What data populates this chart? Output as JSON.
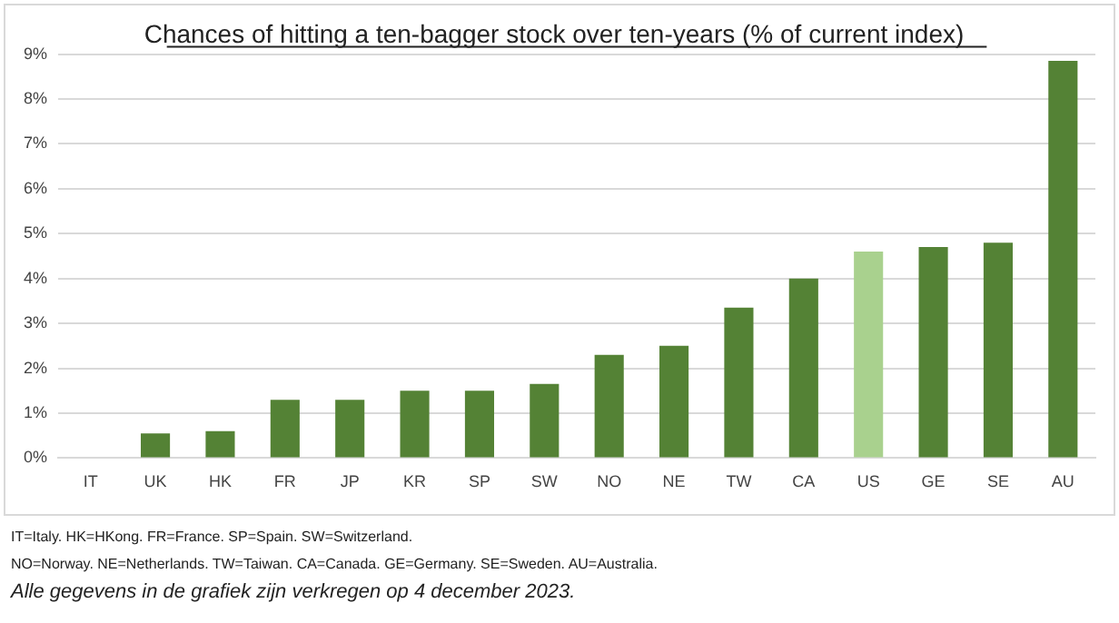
{
  "chart_data": {
    "type": "bar",
    "title": "Chances of hitting a ten-bagger stock over ten-years (% of current index)",
    "categories": [
      "IT",
      "UK",
      "HK",
      "FR",
      "JP",
      "KR",
      "SP",
      "SW",
      "NO",
      "NE",
      "TW",
      "CA",
      "US",
      "GE",
      "SE",
      "AU"
    ],
    "values": [
      0,
      0.55,
      0.6,
      1.3,
      1.3,
      1.5,
      1.5,
      1.65,
      2.3,
      2.5,
      3.35,
      4.0,
      4.6,
      4.7,
      4.8,
      8.85
    ],
    "colors": [
      "#548235",
      "#548235",
      "#548235",
      "#548235",
      "#548235",
      "#548235",
      "#548235",
      "#548235",
      "#548235",
      "#548235",
      "#548235",
      "#548235",
      "#a9d18e",
      "#548235",
      "#548235",
      "#548235"
    ],
    "ylim": [
      0,
      9
    ],
    "yticks": [
      {
        "value": 0,
        "label": "0%"
      },
      {
        "value": 1,
        "label": "1%"
      },
      {
        "value": 2,
        "label": "2%"
      },
      {
        "value": 3,
        "label": "3%"
      },
      {
        "value": 4,
        "label": "4%"
      },
      {
        "value": 5,
        "label": "5%"
      },
      {
        "value": 6,
        "label": "6%"
      },
      {
        "value": 7,
        "label": "7%"
      },
      {
        "value": 8,
        "label": "8%"
      },
      {
        "value": 9,
        "label": "9%"
      }
    ],
    "grid": "y",
    "annotations": [
      "IT=Italy. HK=HKong. FR=France. SP=Spain. SW=Switzerland.",
      "NO=Norway. NE=Netherlands. TW=Taiwan. CA=Canada. GE=Germany. SE=Sweden. AU=Australia.",
      "Alle gegevens in de grafiek zijn verkregen op 4 december 2023."
    ]
  }
}
